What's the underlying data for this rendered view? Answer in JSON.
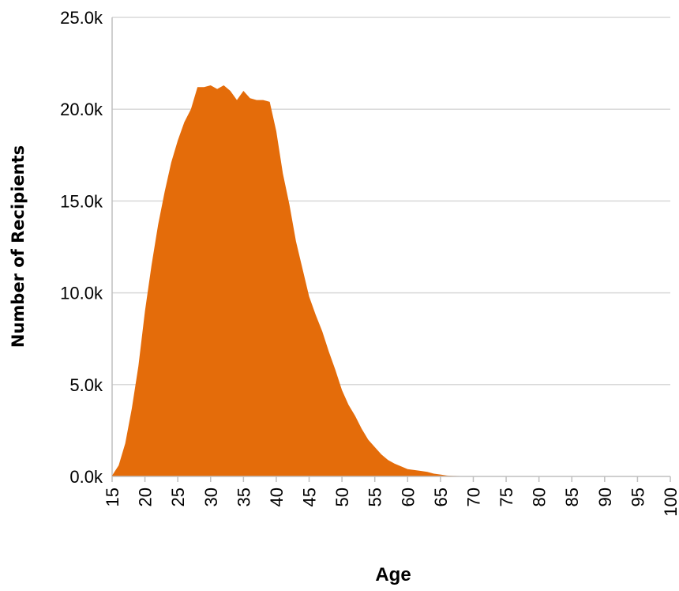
{
  "chart_data": {
    "type": "area",
    "xlabel": "Age",
    "ylabel": "Number of Recipients",
    "xlim": [
      15,
      100
    ],
    "ylim": [
      0,
      25000
    ],
    "grid": true,
    "legend": "none",
    "color": "#e46c0a",
    "grid_color": "#d9d9d9",
    "y_ticks": [
      {
        "value": 0,
        "label": "0.0k"
      },
      {
        "value": 5000,
        "label": "5.0k"
      },
      {
        "value": 10000,
        "label": "10.0k"
      },
      {
        "value": 15000,
        "label": "15.0k"
      },
      {
        "value": 20000,
        "label": "20.0k"
      },
      {
        "value": 25000,
        "label": "25.0k"
      }
    ],
    "x_ticks": [
      {
        "value": 15,
        "label": "15"
      },
      {
        "value": 20,
        "label": "20"
      },
      {
        "value": 25,
        "label": "25"
      },
      {
        "value": 30,
        "label": "30"
      },
      {
        "value": 35,
        "label": "35"
      },
      {
        "value": 40,
        "label": "40"
      },
      {
        "value": 45,
        "label": "45"
      },
      {
        "value": 50,
        "label": "50"
      },
      {
        "value": 55,
        "label": "55"
      },
      {
        "value": 60,
        "label": "60"
      },
      {
        "value": 65,
        "label": "65"
      },
      {
        "value": 70,
        "label": "70"
      },
      {
        "value": 75,
        "label": "75"
      },
      {
        "value": 80,
        "label": "80"
      },
      {
        "value": 85,
        "label": "85"
      },
      {
        "value": 90,
        "label": "90"
      },
      {
        "value": 95,
        "label": "95"
      },
      {
        "value": 100,
        "label": "100"
      }
    ],
    "x": [
      15,
      16,
      17,
      18,
      19,
      20,
      21,
      22,
      23,
      24,
      25,
      26,
      27,
      28,
      29,
      30,
      31,
      32,
      33,
      34,
      35,
      36,
      37,
      38,
      39,
      40,
      41,
      42,
      43,
      44,
      45,
      46,
      47,
      48,
      49,
      50,
      51,
      52,
      53,
      54,
      55,
      56,
      57,
      58,
      59,
      60,
      61,
      62,
      63,
      64,
      65,
      66,
      67,
      68,
      69,
      70,
      75,
      80,
      85,
      90,
      95,
      100
    ],
    "values": [
      50,
      600,
      1800,
      3700,
      6000,
      9000,
      11500,
      13700,
      15500,
      17100,
      18300,
      19300,
      20000,
      21200,
      21200,
      21300,
      21100,
      21300,
      21000,
      20500,
      21000,
      20600,
      20500,
      20500,
      20400,
      18800,
      16500,
      14800,
      12800,
      11300,
      9800,
      8800,
      7900,
      6800,
      5800,
      4700,
      3900,
      3300,
      2600,
      2000,
      1600,
      1200,
      900,
      700,
      550,
      400,
      350,
      300,
      250,
      150,
      100,
      50,
      30,
      20,
      10,
      5,
      5,
      5,
      5,
      5,
      5,
      5
    ]
  }
}
